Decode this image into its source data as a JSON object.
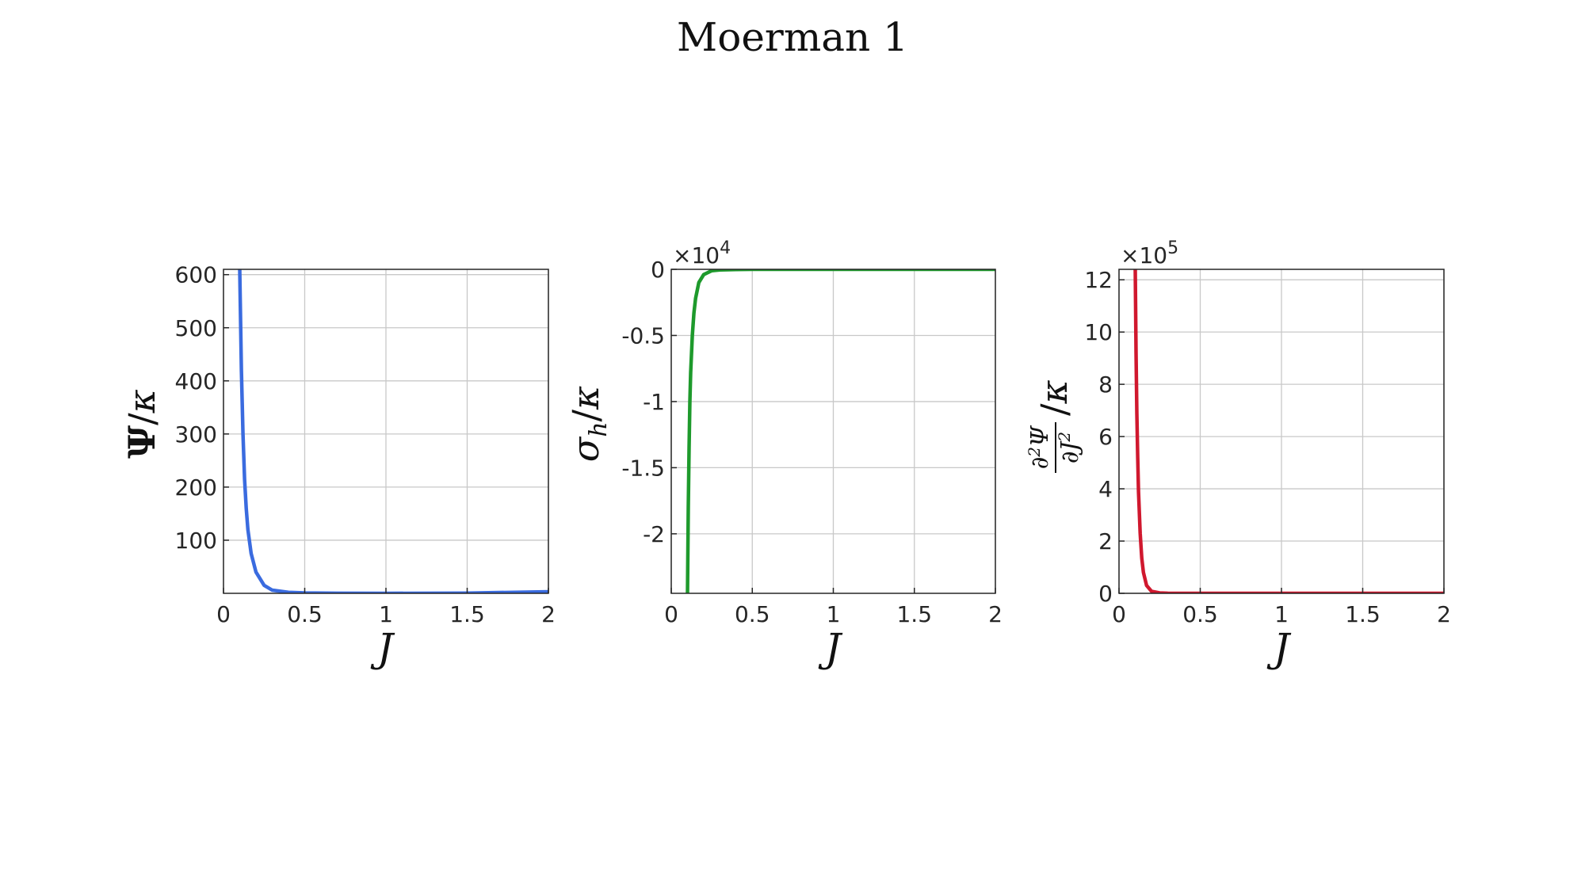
{
  "title": "Moerman 1",
  "chart_data": [
    {
      "type": "line",
      "xlabel": "J",
      "ylabel": "Ψ/κ",
      "xlim": [
        0,
        2
      ],
      "ylim": [
        0,
        610
      ],
      "xticks": [
        0,
        0.5,
        1,
        1.5,
        2
      ],
      "xtick_labels": [
        "0",
        "0.5",
        "1",
        "1.5",
        "2"
      ],
      "yticks": [
        100,
        200,
        300,
        400,
        500,
        600
      ],
      "ytick_labels": [
        "100",
        "200",
        "300",
        "400",
        "500",
        "600"
      ],
      "exponent_label": "",
      "grid": true,
      "color": "#3a6bdf",
      "series": [
        {
          "x": [
            0.1,
            0.11,
            0.12,
            0.13,
            0.14,
            0.15,
            0.17,
            0.2,
            0.25,
            0.3,
            0.4,
            0.5,
            0.7,
            1.0,
            1.5,
            2.0
          ],
          "y": [
            610,
            420,
            300,
            215,
            160,
            120,
            75,
            40,
            15,
            6,
            2,
            0.8,
            0.2,
            0,
            0.5,
            3
          ]
        }
      ]
    },
    {
      "type": "line",
      "xlabel": "J",
      "ylabel": "σ_h/κ",
      "xlim": [
        0,
        2
      ],
      "ylim": [
        -2.45,
        0
      ],
      "xticks": [
        0,
        0.5,
        1,
        1.5,
        2
      ],
      "xtick_labels": [
        "0",
        "0.5",
        "1",
        "1.5",
        "2"
      ],
      "yticks": [
        0,
        -0.5,
        -1,
        -1.5,
        -2
      ],
      "ytick_labels": [
        "0",
        "-0.5",
        "-1",
        "-1.5",
        "-2"
      ],
      "exponent_label": "×10",
      "exponent_power": "4",
      "grid": true,
      "color": "#1e9a2c",
      "series": [
        {
          "x": [
            0.1,
            0.105,
            0.11,
            0.115,
            0.12,
            0.13,
            0.14,
            0.15,
            0.17,
            0.2,
            0.25,
            0.3,
            0.4,
            0.5,
            1.0,
            2.0
          ],
          "y": [
            -2.45,
            -1.8,
            -1.35,
            -1.0,
            -0.78,
            -0.5,
            -0.33,
            -0.22,
            -0.1,
            -0.04,
            -0.01,
            -0.004,
            -0.001,
            0,
            0,
            0
          ]
        }
      ]
    },
    {
      "type": "line",
      "xlabel": "J",
      "ylabel": "∂²Ψ/∂J² /κ",
      "xlim": [
        0,
        2
      ],
      "ylim": [
        0,
        12.4
      ],
      "xticks": [
        0,
        0.5,
        1,
        1.5,
        2
      ],
      "xtick_labels": [
        "0",
        "0.5",
        "1",
        "1.5",
        "2"
      ],
      "yticks": [
        0,
        2,
        4,
        6,
        8,
        10,
        12
      ],
      "ytick_labels": [
        "0",
        "2",
        "4",
        "6",
        "8",
        "10",
        "12"
      ],
      "exponent_label": "×10",
      "exponent_power": "5",
      "grid": true,
      "color": "#d0182e",
      "series": [
        {
          "x": [
            0.1,
            0.105,
            0.11,
            0.115,
            0.12,
            0.13,
            0.14,
            0.15,
            0.17,
            0.2,
            0.25,
            0.3,
            0.5,
            1.0,
            2.0
          ],
          "y": [
            12.4,
            9.2,
            6.9,
            5.2,
            3.9,
            2.3,
            1.35,
            0.8,
            0.3,
            0.08,
            0.015,
            0.003,
            0,
            0,
            0
          ]
        }
      ]
    }
  ]
}
